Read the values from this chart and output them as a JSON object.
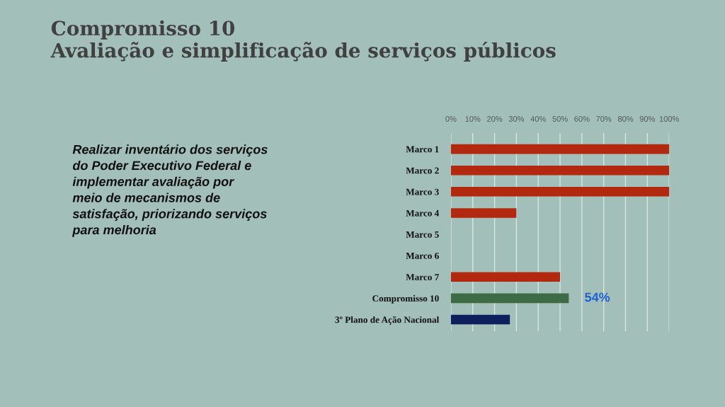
{
  "chart_data": {
    "type": "bar",
    "orientation": "horizontal",
    "title": "Compromisso 10\nAvaliação e simplificação de serviços públicos",
    "annotations": [
      "Realizar inventário dos serviços\ndo Poder Executivo Federal e\nimplementar avaliação por\nmeio de mecanismos de\nsatisfação, priorizando serviços\npara melhoria"
    ],
    "categories": [
      "Marco 1",
      "Marco 2",
      "Marco 3",
      "Marco 4",
      "Marco 5",
      "Marco 6",
      "Marco 7",
      "Compromisso 10",
      "3º Plano de Ação Nacional"
    ],
    "values": [
      100,
      100,
      100,
      30,
      0,
      0,
      50,
      54,
      27
    ],
    "colors": [
      "#b3290f",
      "#b3290f",
      "#b3290f",
      "#b3290f",
      "#b3290f",
      "#b3290f",
      "#b3290f",
      "#3d6b45",
      "#0e1f5e"
    ],
    "value_labels": [
      null,
      null,
      null,
      null,
      null,
      null,
      null,
      "54%",
      null
    ],
    "xlim": [
      0,
      100
    ],
    "xticks": [
      {
        "value": 0,
        "label": "0%"
      },
      {
        "value": 10,
        "label": "10%"
      },
      {
        "value": 20,
        "label": "20%"
      },
      {
        "value": 30,
        "label": "30%"
      },
      {
        "value": 40,
        "label": "40%"
      },
      {
        "value": 50,
        "label": "50%"
      },
      {
        "value": 60,
        "label": "60%"
      },
      {
        "value": 70,
        "label": "70%"
      },
      {
        "value": 80,
        "label": "80%"
      },
      {
        "value": 90,
        "label": "90%"
      },
      {
        "value": 100,
        "label": "100%"
      }
    ],
    "grid": "x"
  }
}
